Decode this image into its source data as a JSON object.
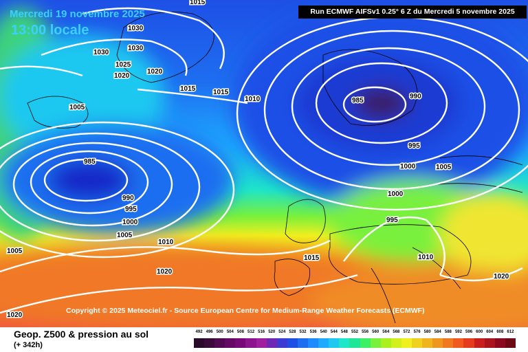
{
  "header": {
    "date": "Mercredi 19 novembre 2025",
    "time": "13:00 locale",
    "run": "Run ECMWF AIFSv1 0.25° 6 Z du Mercredi 5 novembre 2025"
  },
  "footer": {
    "copyright": "Copyright © 2025 Meteociel.fr - Source European Centre for Medium-Range Weather Forecasts (ECMWF)",
    "field": "Geop. Z500 & pression au sol",
    "lead": "(+ 342h)"
  },
  "colors": {
    "cold_core": "#3a1a5a",
    "deep_blue": "#1428c8",
    "blue": "#2a64e6",
    "cyan": "#30b4ff",
    "green": "#4cd23c",
    "yellow": "#f0e632",
    "orange": "#fa9628",
    "red": "#f05a3c",
    "isobar": "#ffffff",
    "coastline": "#000000",
    "title_cyan": "#3ad0ff"
  },
  "isobar_labels": [
    "1015",
    "1030",
    "1030",
    "1030",
    "1025",
    "1020",
    "1020",
    "1015",
    "1015",
    "1010",
    "1005",
    "985",
    "990",
    "995",
    "1000",
    "1005",
    "1010",
    "1020",
    "1005",
    "1020",
    "985",
    "990",
    "995",
    "1000",
    "1005",
    "1000",
    "995",
    "1015",
    "1010",
    "1020"
  ],
  "scale": {
    "labels": [
      "492",
      "496",
      "500",
      "504",
      "508",
      "512",
      "516",
      "520",
      "524",
      "528",
      "532",
      "536",
      "540",
      "544",
      "548",
      "552",
      "556",
      "560",
      "564",
      "568",
      "572",
      "576",
      "580",
      "584",
      "588",
      "592",
      "596",
      "600",
      "604",
      "608",
      "612"
    ],
    "colors": [
      "#2a0a2a",
      "#3a0a3a",
      "#500a50",
      "#640a64",
      "#780a78",
      "#8c148c",
      "#a01ea0",
      "#6e28b4",
      "#3c3cd2",
      "#1e50e6",
      "#1e6ef0",
      "#1e8cff",
      "#1eaaff",
      "#1ec8f0",
      "#1ee6c8",
      "#1ee696",
      "#3cf064",
      "#78f03c",
      "#aaf01e",
      "#d2f01e",
      "#f0f01e",
      "#f0d21e",
      "#f0b41e",
      "#f0961e",
      "#f0781e",
      "#f05a1e",
      "#e63c1e",
      "#c81e1e",
      "#aa141e",
      "#8c0a1e",
      "#6e0a14"
    ]
  }
}
